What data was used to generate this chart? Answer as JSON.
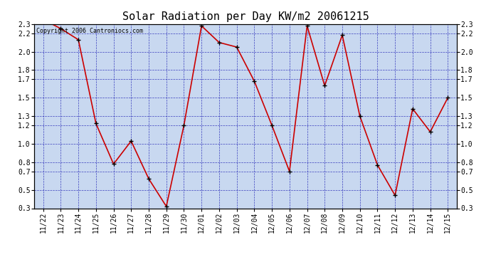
{
  "title": "Solar Radiation per Day KW/m2 20061215",
  "copyright_text": "Copyright 2006 Cantroniocs.com",
  "labels": [
    "11/22",
    "11/23",
    "11/24",
    "11/25",
    "11/26",
    "11/27",
    "11/28",
    "11/29",
    "11/30",
    "12/01",
    "12/02",
    "12/03",
    "12/04",
    "12/05",
    "12/06",
    "12/07",
    "12/08",
    "12/09",
    "12/10",
    "12/11",
    "12/12",
    "12/13",
    "12/14",
    "12/15"
  ],
  "values": [
    2.35,
    2.25,
    2.13,
    1.22,
    0.78,
    1.03,
    0.62,
    0.32,
    1.2,
    2.28,
    2.1,
    2.05,
    1.68,
    1.2,
    0.7,
    2.28,
    1.63,
    2.18,
    1.3,
    0.77,
    0.44,
    1.38,
    1.13,
    1.5
  ],
  "line_color": "#cc0000",
  "marker_color": "#000000",
  "plot_bg_color": "#c8d8f0",
  "grid_color": "#0000aa",
  "ylim": [
    0.3,
    2.3
  ],
  "yticks": [
    0.3,
    0.5,
    0.7,
    0.8,
    1.0,
    1.2,
    1.3,
    1.5,
    1.7,
    1.8,
    2.0,
    2.2,
    2.3
  ],
  "title_fontsize": 11,
  "tick_fontsize": 7,
  "copyright_fontsize": 6
}
